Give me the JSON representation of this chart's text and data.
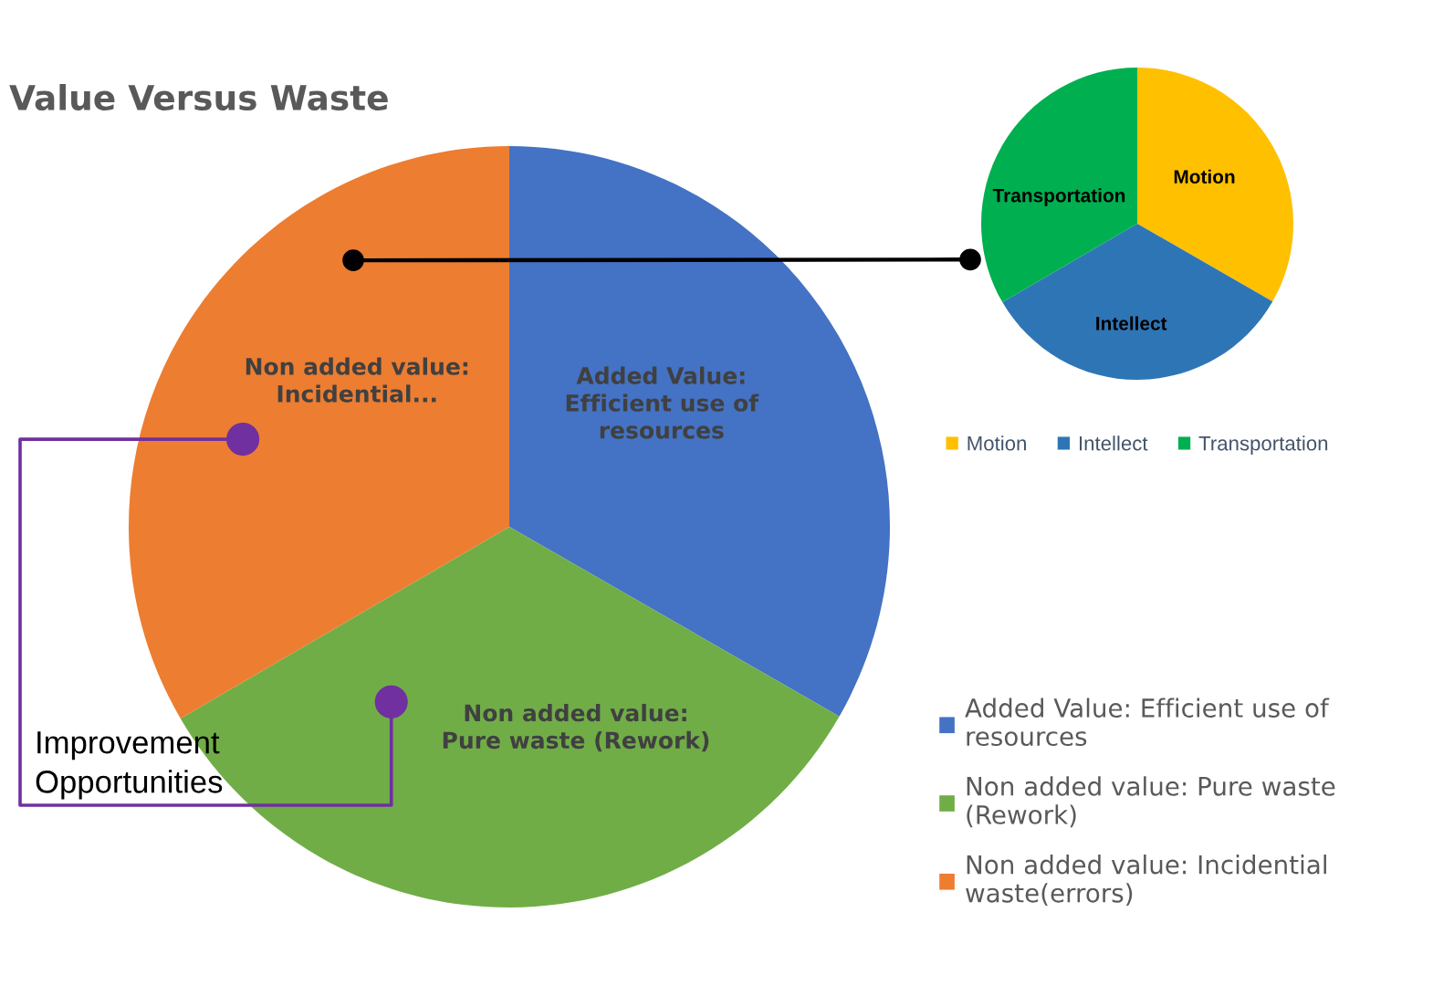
{
  "chart_data": [
    {
      "type": "pie",
      "title": "Value Versus Waste",
      "categories": [
        "Added Value: Efficient use of\nresources",
        "Non added value: Pure waste\n(Rework)",
        "Non added value: Incidential\nwaste(errors)"
      ],
      "values": [
        33.3,
        33.3,
        33.4
      ],
      "colors": [
        "#4472c4",
        "#70ad47",
        "#ed7d31"
      ],
      "value_labels": [
        "Added Value:\nEfficient use of\nresources",
        "Non added value:\nPure waste (Rework)",
        "Non added value:\nIncidential..."
      ],
      "legend": "bottom right",
      "annotations": [
        "Improvement\nOpportunities"
      ]
    },
    {
      "type": "pie",
      "categories": [
        "Motion",
        "Intellect",
        "Transportation"
      ],
      "values": [
        33.3,
        33.3,
        33.4
      ],
      "colors": [
        "#ffc000",
        "#2e75b6",
        "#00b050"
      ],
      "value_labels": [
        "Motion",
        "Intellect",
        "Transportation"
      ],
      "legend": "bottom"
    }
  ]
}
